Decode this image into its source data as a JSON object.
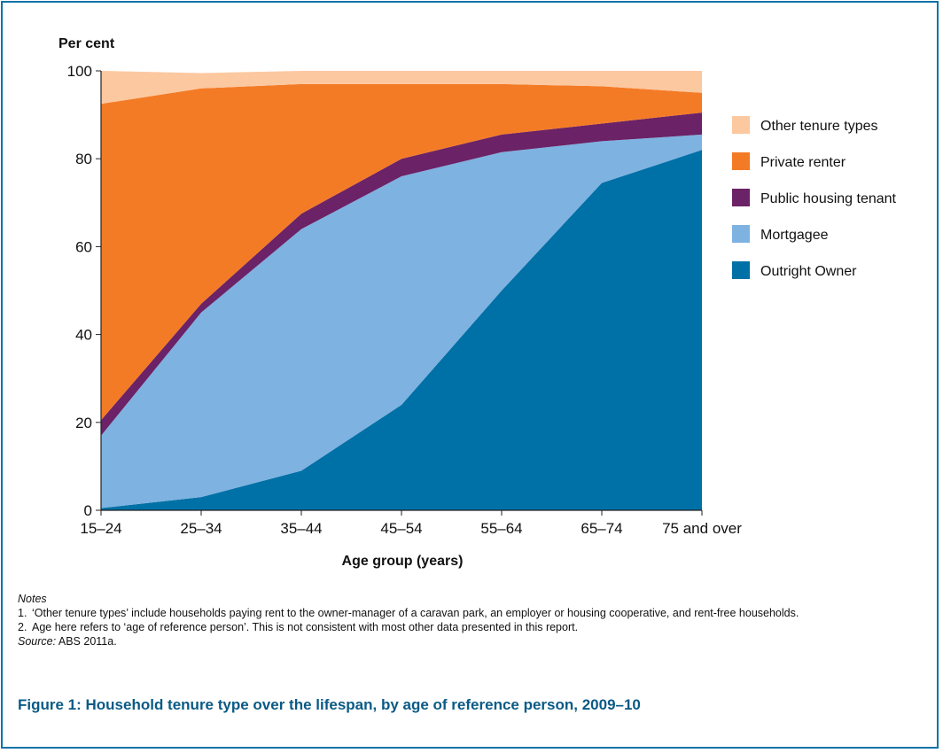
{
  "chart_data": {
    "type": "area",
    "stacked": true,
    "ylabel": "Per cent",
    "xlabel": "Age group (years)",
    "ylim": [
      0,
      100
    ],
    "yticks": [
      0,
      20,
      40,
      60,
      80,
      100
    ],
    "categories": [
      "15–24",
      "25–34",
      "35–44",
      "45–54",
      "55–64",
      "65–74",
      "75 and over"
    ],
    "series": [
      {
        "name": "Outright Owner",
        "color": "#0071a7",
        "values": [
          0.5,
          3,
          9,
          24,
          50,
          74.5,
          82
        ]
      },
      {
        "name": "Mortgagee",
        "color": "#7eb2e0",
        "values": [
          16.5,
          42,
          55,
          52,
          31.5,
          9.5,
          3.5
        ]
      },
      {
        "name": "Public housing tenant",
        "color": "#6b2266",
        "values": [
          3.5,
          2,
          3.5,
          4,
          4,
          4,
          5
        ]
      },
      {
        "name": "Private renter",
        "color": "#f47b26",
        "values": [
          72,
          49,
          29.5,
          17,
          11.5,
          8.5,
          4.5
        ]
      },
      {
        "name": "Other tenure types",
        "color": "#fcc8a0",
        "values": [
          7.5,
          3.5,
          3,
          3,
          3,
          3.5,
          5
        ]
      }
    ],
    "legend": {
      "position": "right",
      "order": [
        "Other tenure types",
        "Private renter",
        "Public housing tenant",
        "Mortgagee",
        "Outright Owner"
      ]
    },
    "grid": false
  },
  "notes": {
    "heading": "Notes",
    "items": [
      {
        "num": "1.",
        "text": "‘Other tenure types’ include households paying rent to the owner-manager of a caravan park, an employer or housing cooperative, and rent-free households."
      },
      {
        "num": "2.",
        "text": "Age here refers to ‘age of reference person’. This is not consistent with most other data presented in this report."
      }
    ],
    "source_label": "Source:",
    "source_text": " ABS 2011a."
  },
  "figure_title": "Figure 1: Household tenure type over the lifespan, by age of reference person, 2009–10"
}
